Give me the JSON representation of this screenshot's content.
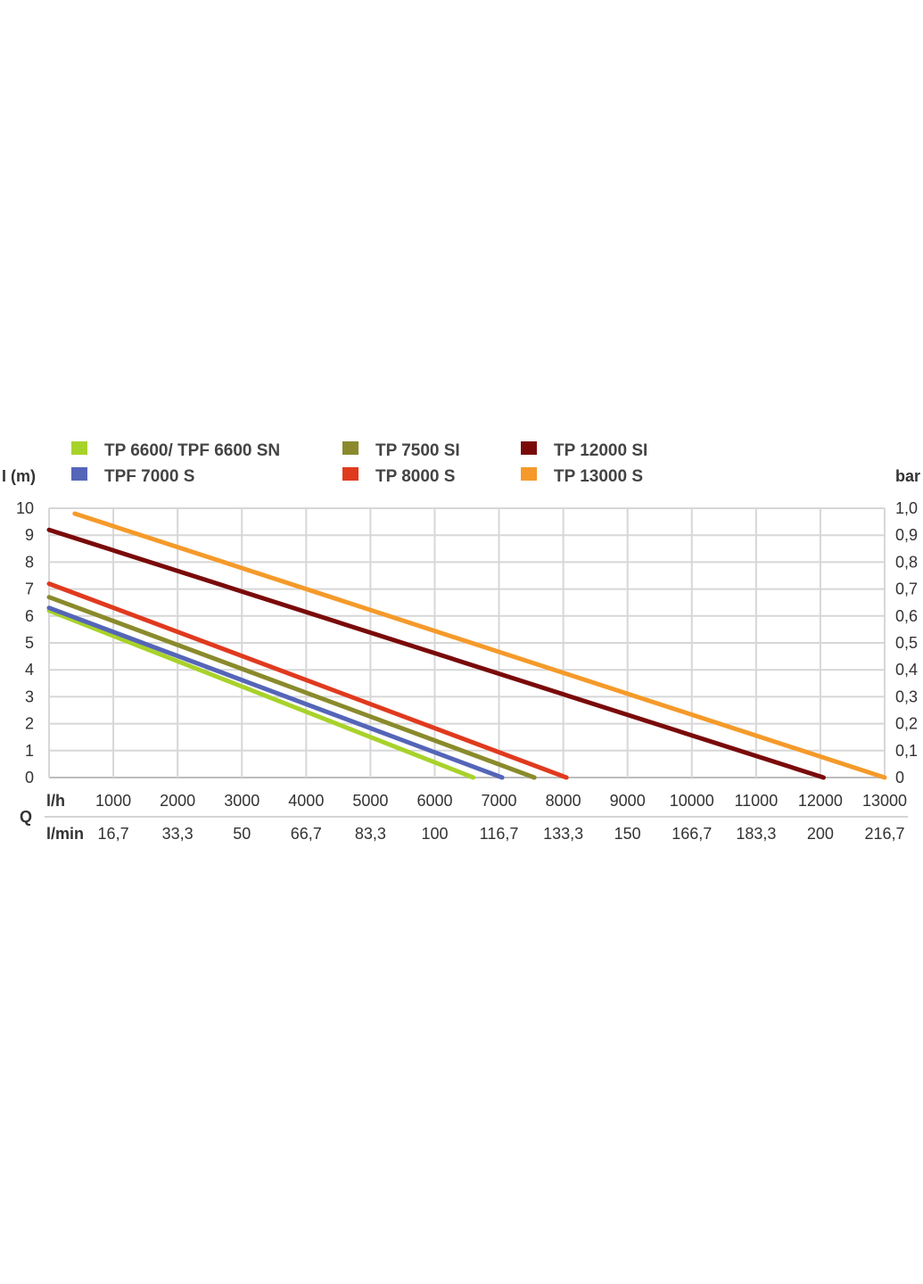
{
  "chart_data": {
    "type": "line",
    "legend": [
      {
        "name": "TP 6600/ TPF 6600 SN",
        "color": "#a8d22a"
      },
      {
        "name": "TPF 7000 S",
        "color": "#5565b8"
      },
      {
        "name": "TP 7500 SI",
        "color": "#8a8a2c"
      },
      {
        "name": "TP 8000 S",
        "color": "#e03a1e"
      },
      {
        "name": "TP 12000 SI",
        "color": "#7a0a0a"
      },
      {
        "name": "TP 13000 S",
        "color": "#f59a2a"
      }
    ],
    "series": [
      {
        "name": "TP 6600/ TPF 6600 SN",
        "color": "#a8d22a",
        "points": [
          [
            0,
            6.2
          ],
          [
            6600,
            0
          ]
        ]
      },
      {
        "name": "TPF 7000 S",
        "color": "#5565b8",
        "points": [
          [
            0,
            6.3
          ],
          [
            7050,
            0
          ]
        ]
      },
      {
        "name": "TP 7500 SI",
        "color": "#8a8a2c",
        "points": [
          [
            0,
            6.7
          ],
          [
            7550,
            0
          ]
        ]
      },
      {
        "name": "TP 8000 S",
        "color": "#e03a1e",
        "points": [
          [
            0,
            7.2
          ],
          [
            8050,
            0
          ]
        ]
      },
      {
        "name": "TP 12000 SI",
        "color": "#7a0a0a",
        "points": [
          [
            0,
            9.2
          ],
          [
            12050,
            0
          ]
        ]
      },
      {
        "name": "TP 13000 S",
        "color": "#f59a2a",
        "points": [
          [
            400,
            9.8
          ],
          [
            13000,
            0
          ]
        ]
      }
    ],
    "xlim": [
      0,
      13000
    ],
    "ylim": [
      0,
      10
    ],
    "x_ticks_lh": [
      "1000",
      "2000",
      "3000",
      "4000",
      "5000",
      "6000",
      "7000",
      "8000",
      "9000",
      "10000",
      "11000",
      "12000",
      "13000"
    ],
    "x_ticks_lmin": [
      "16,7",
      "33,3",
      "50",
      "66,7",
      "83,3",
      "100",
      "116,7",
      "133,3",
      "150",
      "166,7",
      "183,3",
      "200",
      "216,7"
    ],
    "y_ticks_left": [
      "0",
      "1",
      "2",
      "3",
      "4",
      "5",
      "6",
      "7",
      "8",
      "9",
      "10"
    ],
    "y_ticks_right": [
      "0",
      "0,1",
      "0,2",
      "0,3",
      "0,4",
      "0,5",
      "0,6",
      "0,7",
      "0,8",
      "0,9",
      "1,0"
    ],
    "ylabel_left": "I (m)",
    "ylabel_right": "bar",
    "x_unit_lh": "l/h",
    "x_unit_lmin": "l/min",
    "x_quantity": "Q",
    "grid": true,
    "legend_position": "top"
  }
}
